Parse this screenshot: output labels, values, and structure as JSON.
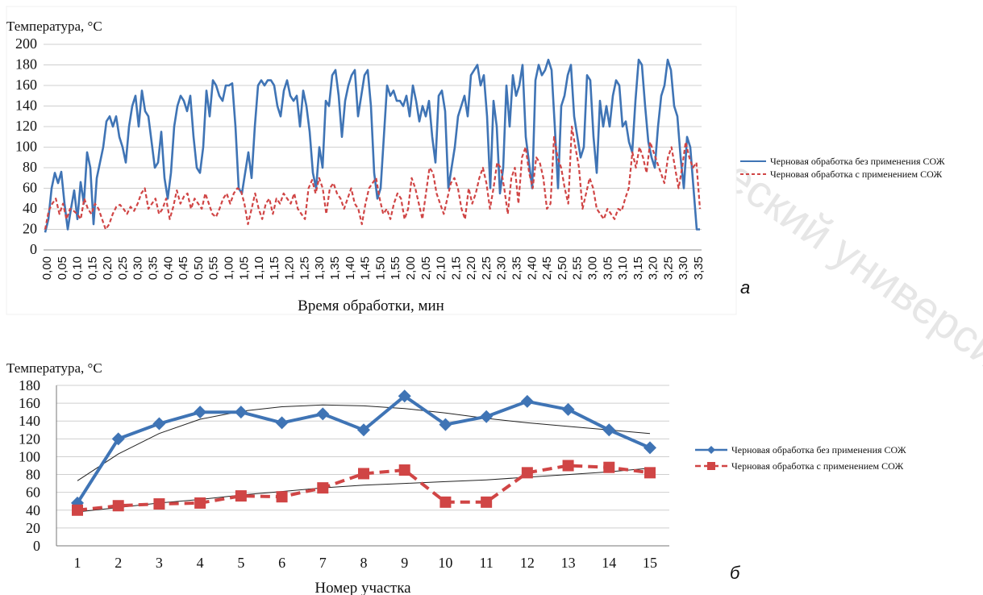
{
  "watermark": "и технологический университ",
  "chart_data": [
    {
      "type": "line",
      "panel_label": "а",
      "ylabel": "Температура, °С",
      "xlabel": "Время обработки, мин",
      "ylim": [
        0,
        200
      ],
      "yticks": [
        0,
        20,
        40,
        60,
        80,
        100,
        120,
        140,
        160,
        180,
        200
      ],
      "x_ticks": [
        "0,00",
        "0,05",
        "0,10",
        "0,15",
        "0,20",
        "0,25",
        "0,30",
        "0,35",
        "0,40",
        "0,45",
        "0,50",
        "0,55",
        "1,00",
        "1,05",
        "1,10",
        "1,15",
        "1,20",
        "1,25",
        "1,30",
        "1,35",
        "1,40",
        "1,45",
        "1,50",
        "1,55",
        "2,00",
        "2,05",
        "2,10",
        "2,15",
        "2,20",
        "2,25",
        "2,30",
        "2,35",
        "2,40",
        "2,45",
        "2,50",
        "2,55",
        "3,00",
        "3,05",
        "3,10",
        "3,15",
        "3,20",
        "3,25",
        "3,30",
        "3,35"
      ],
      "grid": "horizontal",
      "legend_position": "right",
      "series": [
        {
          "name": "Черновая обработка без применения СОЖ",
          "color": "#3f74b5",
          "style": "solid",
          "values": [
            17,
            30,
            60,
            75,
            65,
            76,
            45,
            20,
            40,
            58,
            30,
            66,
            45,
            95,
            80,
            25,
            70,
            85,
            100,
            125,
            130,
            120,
            130,
            110,
            100,
            85,
            120,
            140,
            150,
            120,
            155,
            135,
            130,
            105,
            80,
            85,
            115,
            70,
            50,
            75,
            120,
            140,
            150,
            145,
            135,
            150,
            110,
            80,
            75,
            100,
            155,
            130,
            165,
            160,
            150,
            145,
            160,
            160,
            162,
            120,
            60,
            55,
            75,
            95,
            70,
            120,
            160,
            165,
            160,
            165,
            165,
            160,
            140,
            130,
            155,
            165,
            150,
            145,
            150,
            120,
            155,
            140,
            115,
            75,
            60,
            100,
            80,
            145,
            140,
            170,
            175,
            150,
            110,
            145,
            160,
            170,
            175,
            130,
            150,
            170,
            175,
            140,
            75,
            50,
            60,
            110,
            160,
            150,
            155,
            145,
            145,
            140,
            150,
            130,
            160,
            145,
            125,
            140,
            130,
            145,
            110,
            85,
            150,
            155,
            135,
            60,
            80,
            100,
            130,
            140,
            150,
            130,
            170,
            175,
            180,
            160,
            170,
            130,
            60,
            145,
            120,
            55,
            80,
            160,
            120,
            170,
            150,
            160,
            180,
            110,
            85,
            60,
            165,
            180,
            170,
            175,
            185,
            175,
            120,
            60,
            140,
            150,
            170,
            180,
            130,
            110,
            90,
            100,
            170,
            165,
            110,
            75,
            145,
            120,
            140,
            120,
            150,
            165,
            160,
            120,
            125,
            105,
            95,
            145,
            185,
            180,
            140,
            105,
            90,
            80,
            120,
            150,
            160,
            185,
            175,
            140,
            130,
            90,
            60,
            110,
            100,
            60,
            20,
            20
          ]
        },
        {
          "name": "Черновая обработка с применением СОЖ",
          "color": "#d04545",
          "style": "dashed",
          "values": [
            20,
            38,
            45,
            50,
            35,
            45,
            30,
            40,
            38,
            35,
            30,
            50,
            40,
            35,
            45,
            40,
            30,
            20,
            25,
            35,
            42,
            44,
            40,
            35,
            42,
            38,
            45,
            55,
            60,
            40,
            45,
            50,
            35,
            40,
            50,
            30,
            42,
            58,
            45,
            52,
            55,
            40,
            50,
            45,
            40,
            55,
            45,
            35,
            32,
            40,
            50,
            55,
            45,
            55,
            60,
            58,
            45,
            25,
            40,
            55,
            40,
            30,
            45,
            50,
            35,
            50,
            45,
            55,
            50,
            45,
            55,
            40,
            35,
            30,
            60,
            68,
            55,
            70,
            60,
            35,
            60,
            65,
            55,
            50,
            40,
            50,
            60,
            45,
            40,
            25,
            45,
            60,
            65,
            70,
            50,
            35,
            40,
            30,
            45,
            55,
            50,
            30,
            40,
            70,
            60,
            45,
            30,
            55,
            80,
            75,
            55,
            45,
            35,
            50,
            65,
            70,
            60,
            40,
            30,
            60,
            45,
            55,
            70,
            80,
            65,
            40,
            60,
            85,
            80,
            60,
            35,
            70,
            80,
            45,
            90,
            100,
            75,
            60,
            90,
            85,
            70,
            40,
            45,
            110,
            90,
            80,
            60,
            45,
            120,
            100,
            80,
            40,
            55,
            70,
            60,
            40,
            35,
            30,
            40,
            35,
            30,
            40,
            38,
            50,
            60,
            95,
            80,
            100,
            90,
            75,
            105,
            95,
            85,
            75,
            65,
            90,
            100,
            80,
            60,
            80,
            105,
            90,
            80,
            85,
            40
          ]
        }
      ]
    },
    {
      "type": "line",
      "panel_label": "б",
      "ylabel": "Температура, °С",
      "xlabel": "Номер участка",
      "ylim": [
        0,
        180
      ],
      "yticks": [
        0,
        20,
        40,
        60,
        80,
        100,
        120,
        140,
        160,
        180
      ],
      "categories": [
        "1",
        "2",
        "3",
        "4",
        "5",
        "6",
        "7",
        "8",
        "9",
        "10",
        "11",
        "12",
        "13",
        "14",
        "15"
      ],
      "grid": "horizontal",
      "legend_position": "right",
      "series": [
        {
          "name": "Черновая обработка без применения СОЖ",
          "color": "#3f74b5",
          "marker": "diamond",
          "style": "solid",
          "values": [
            48,
            120,
            137,
            150,
            150,
            138,
            148,
            130,
            168,
            136,
            145,
            162,
            153,
            130,
            110
          ]
        },
        {
          "name": "Черновая обработка с применением СОЖ",
          "color": "#d04545",
          "marker": "square",
          "style": "dashed",
          "values": [
            40,
            45,
            47,
            48,
            56,
            55,
            65,
            81,
            85,
            49,
            49,
            82,
            90,
            88,
            82
          ]
        }
      ],
      "trendlines": [
        {
          "color": "#222222",
          "values": [
            73,
            103,
            126,
            142,
            151,
            156,
            158,
            157,
            154,
            149,
            143,
            138,
            134,
            130,
            126
          ]
        },
        {
          "color": "#222222",
          "values": [
            38,
            43,
            48,
            52,
            57,
            61,
            65,
            68,
            70,
            72,
            74,
            77,
            80,
            83,
            87
          ]
        }
      ]
    }
  ]
}
